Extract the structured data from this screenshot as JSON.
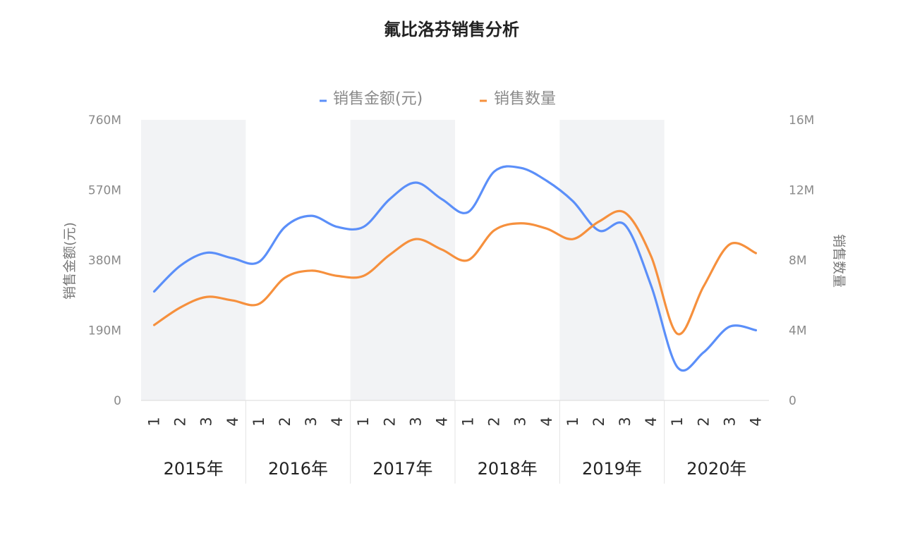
{
  "chart_data": {
    "type": "line",
    "title": "氟比洛芬销售分析",
    "ylabel": "销售金额(元)",
    "y2label": "销售数量",
    "ylim": [
      0,
      760000000
    ],
    "y2lim": [
      0,
      16000000
    ],
    "yticks": [
      "0",
      "190M",
      "380M",
      "570M",
      "760M"
    ],
    "y2ticks": [
      "0",
      "4M",
      "8M",
      "12M",
      "16M"
    ],
    "legend_position": "top",
    "colors": {
      "amount": "#5b8ff9",
      "quantity": "#f6903d",
      "band": "#f2f3f5"
    },
    "years": [
      "2015年",
      "2016年",
      "2017年",
      "2018年",
      "2019年",
      "2020年"
    ],
    "quarters": [
      "1",
      "2",
      "3",
      "4"
    ],
    "series": [
      {
        "name": "销售金额(元)",
        "axis": "left",
        "values": [
          295000000,
          365000000,
          400000000,
          385000000,
          375000000,
          470000000,
          500000000,
          470000000,
          470000000,
          545000000,
          590000000,
          545000000,
          510000000,
          620000000,
          630000000,
          595000000,
          540000000,
          460000000,
          475000000,
          310000000,
          90000000,
          130000000,
          200000000,
          190000000
        ]
      },
      {
        "name": "销售数量",
        "axis": "right",
        "values": [
          4300000,
          5300000,
          5900000,
          5700000,
          5500000,
          7000000,
          7400000,
          7100000,
          7100000,
          8300000,
          9200000,
          8600000,
          8000000,
          9700000,
          10100000,
          9800000,
          9200000,
          10200000,
          10700000,
          8200000,
          3800000,
          6500000,
          8900000,
          8400000
        ]
      }
    ]
  }
}
